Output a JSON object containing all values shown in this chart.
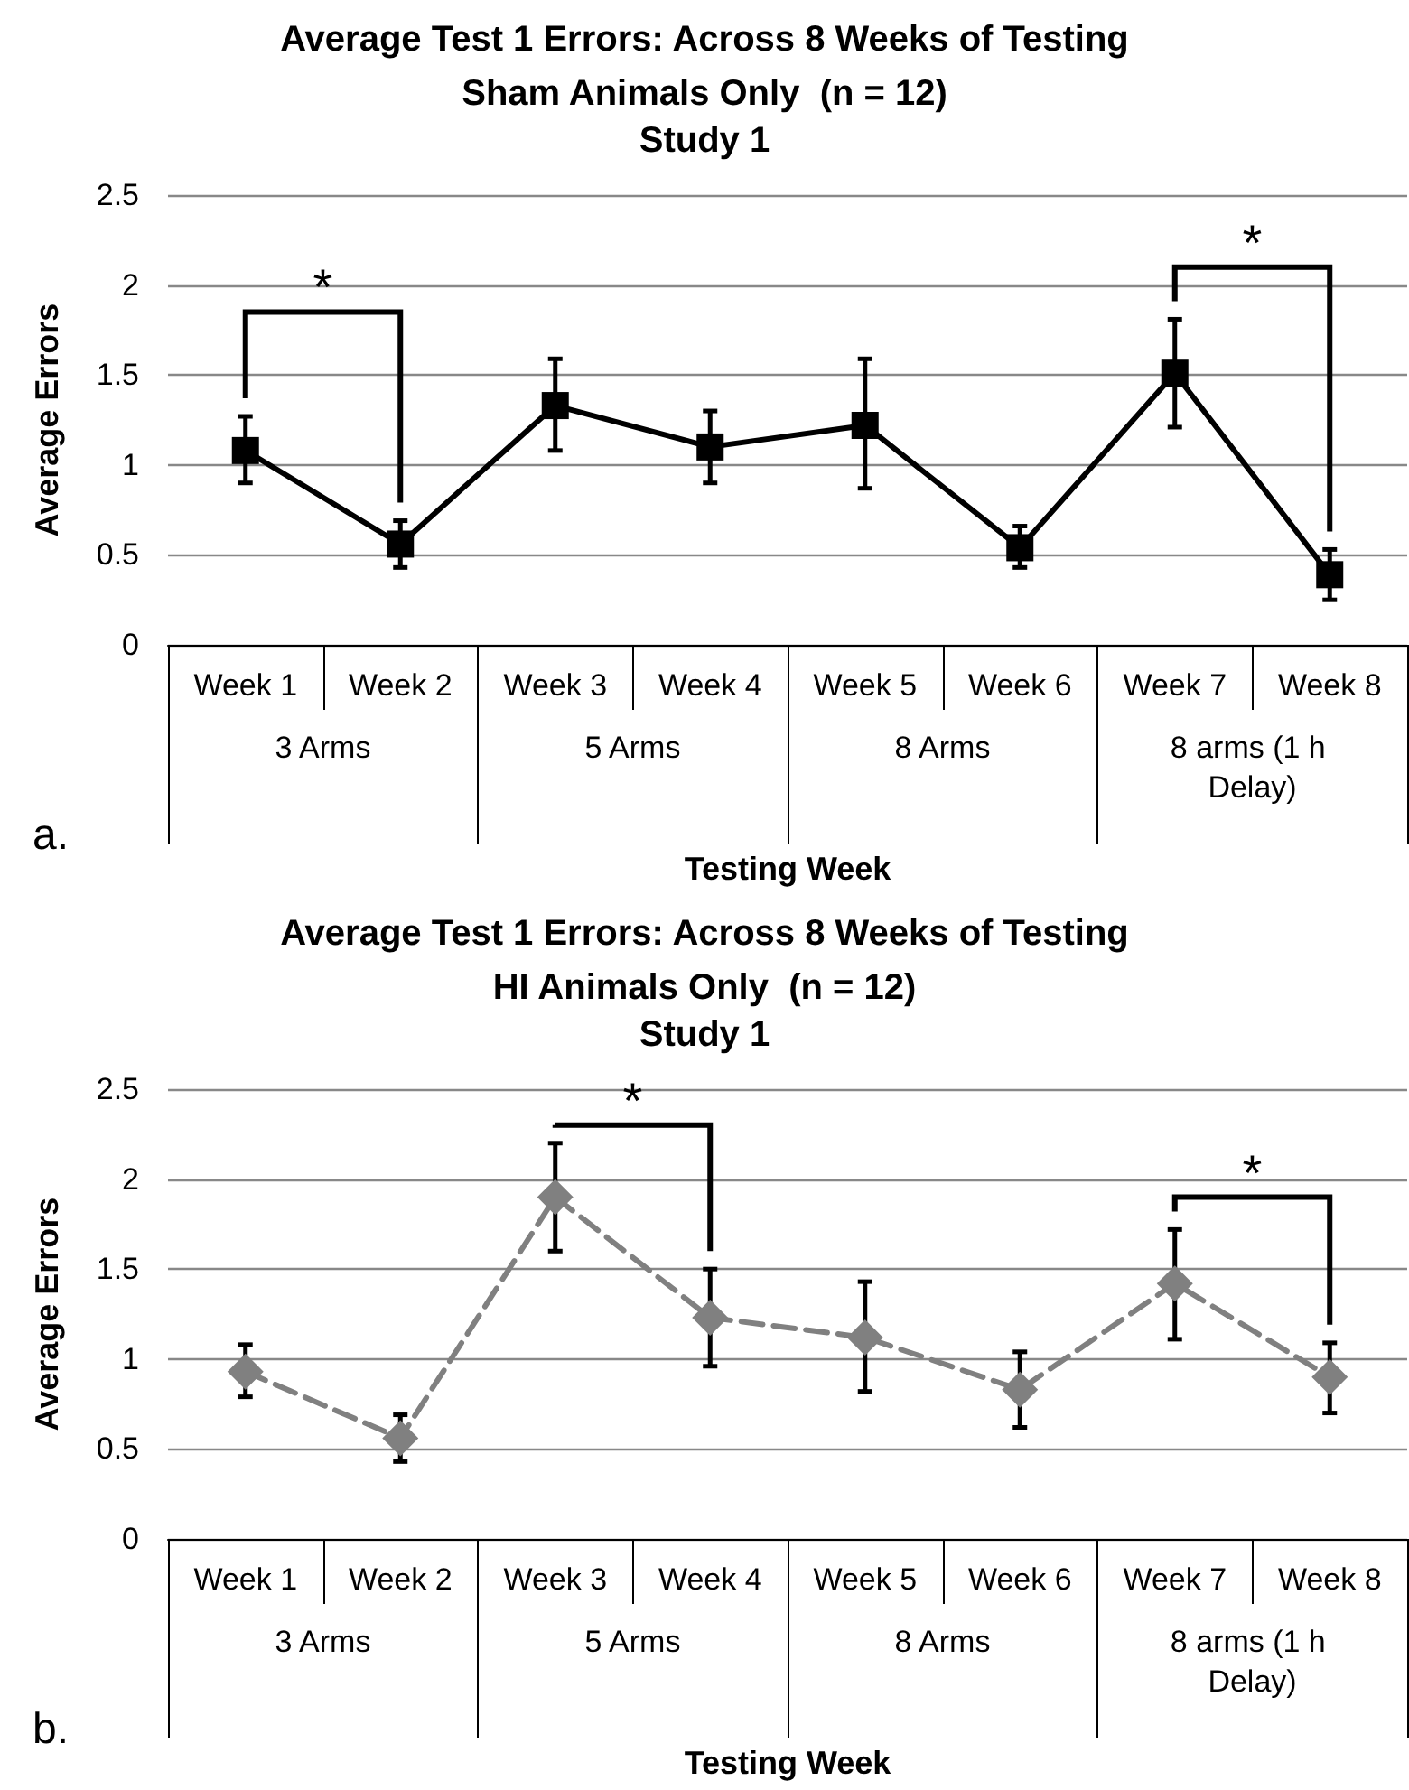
{
  "chart_data": [
    {
      "type": "line",
      "title": "Average Test 1 Errors: Across 8 Weeks of Testing",
      "subtitle": "Sham Animals Only  (n = 12)\nStudy 1",
      "xlabel": "Testing Week",
      "ylabel": "Average Errors",
      "categories": [
        "Week 1",
        "Week 2",
        "Week 3",
        "Week 4",
        "Week 5",
        "Week 6",
        "Week 7",
        "Week 8"
      ],
      "series": [
        {
          "color": "#000000",
          "marker": "square",
          "line_style": "solid",
          "values": [
            1.08,
            0.56,
            1.33,
            1.1,
            1.22,
            0.54,
            1.51,
            0.39
          ],
          "errors": [
            [
              0.9,
              1.27
            ],
            [
              0.43,
              0.69
            ],
            [
              1.08,
              1.59
            ],
            [
              0.9,
              1.3
            ],
            [
              0.87,
              1.59
            ],
            [
              0.43,
              0.66
            ],
            [
              1.21,
              1.81
            ],
            [
              0.25,
              0.53
            ]
          ]
        }
      ],
      "ylim": [
        0,
        2.5
      ],
      "yticks": [
        0,
        0.5,
        1,
        1.5,
        2,
        2.5
      ],
      "grid": "y",
      "annotations": [
        "3 Arms",
        "5 Arms",
        "8 Arms",
        "8 arms (1 h Delay)",
        "a.",
        "*",
        "*"
      ]
    },
    {
      "type": "line",
      "title": "Average Test 1 Errors: Across 8 Weeks of Testing",
      "subtitle": "HI Animals Only  (n = 12)\nStudy 1",
      "xlabel": "Testing Week",
      "ylabel": "Average Errors",
      "categories": [
        "Week 1",
        "Week 2",
        "Week 3",
        "Week 4",
        "Week 5",
        "Week 6",
        "Week 7",
        "Week 8"
      ],
      "series": [
        {
          "color": "#808080",
          "marker": "diamond",
          "line_style": "dashed",
          "values": [
            0.93,
            0.56,
            1.9,
            1.23,
            1.12,
            0.83,
            1.42,
            0.9
          ],
          "errors": [
            [
              0.79,
              1.08
            ],
            [
              0.43,
              0.69
            ],
            [
              1.6,
              2.2
            ],
            [
              0.96,
              1.5
            ],
            [
              0.82,
              1.43
            ],
            [
              0.62,
              1.04
            ],
            [
              1.11,
              1.72
            ],
            [
              0.7,
              1.09
            ]
          ]
        }
      ],
      "ylim": [
        0,
        2.5
      ],
      "yticks": [
        0,
        0.5,
        1,
        1.5,
        2,
        2.5
      ],
      "grid": "y",
      "annotations": [
        "3 Arms",
        "5 Arms",
        "8 Arms",
        "8 arms (1 h Delay)",
        "b.",
        "*",
        "*"
      ]
    }
  ]
}
